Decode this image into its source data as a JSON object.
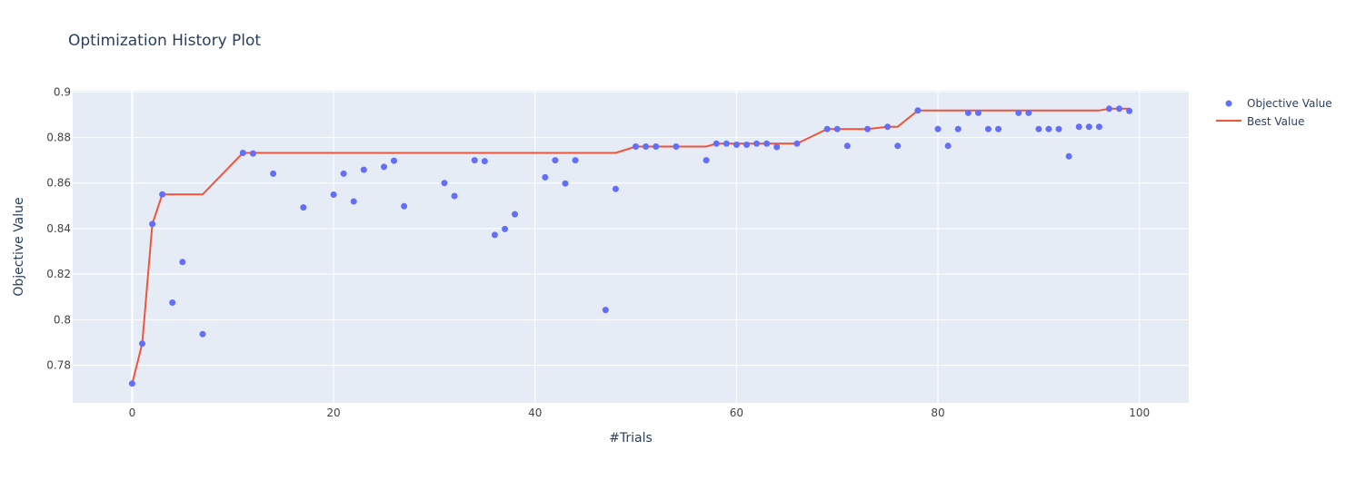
{
  "chart_data": {
    "type": "scatter",
    "title": "Optimization History Plot",
    "xlabel": "#Trials",
    "ylabel": "Objective Value",
    "xlim": [
      -5.9,
      104.9
    ],
    "ylim": [
      0.7635,
      0.9005
    ],
    "x_ticks": [
      0,
      20,
      40,
      60,
      80,
      100
    ],
    "x_tick_labels": [
      "0",
      "20",
      "40",
      "60",
      "80",
      "100"
    ],
    "y_ticks": [
      0.78,
      0.8,
      0.82,
      0.84,
      0.86,
      0.88,
      0.9
    ],
    "y_tick_labels": [
      "0.78",
      "0.8",
      "0.82",
      "0.84",
      "0.86",
      "0.88",
      "0.9"
    ],
    "grid": true,
    "legend_position": "top-right",
    "series": [
      {
        "name": "Objective Value",
        "mode": "markers",
        "color": "#636efa",
        "x": [
          0,
          1,
          2,
          3,
          4,
          5,
          7,
          11,
          12,
          14,
          17,
          20,
          21,
          22,
          23,
          25,
          26,
          27,
          31,
          32,
          34,
          35,
          36,
          37,
          38,
          41,
          42,
          43,
          44,
          47,
          48,
          50,
          51,
          52,
          54,
          57,
          58,
          59,
          60,
          61,
          62,
          63,
          64,
          66,
          69,
          70,
          71,
          73,
          75,
          76,
          78,
          80,
          81,
          82,
          83,
          84,
          85,
          86,
          88,
          89,
          90,
          91,
          92,
          93,
          94,
          95,
          96,
          97,
          98,
          99
        ],
        "y": [
          0.772,
          0.7895,
          0.842,
          0.855,
          0.8075,
          0.8253,
          0.7937,
          0.8732,
          0.873,
          0.8641,
          0.8493,
          0.8549,
          0.8641,
          0.8519,
          0.8658,
          0.8671,
          0.8698,
          0.8498,
          0.86,
          0.8543,
          0.87,
          0.8696,
          0.8372,
          0.8398,
          0.8463,
          0.8625,
          0.87,
          0.8598,
          0.87,
          0.8043,
          0.8574,
          0.876,
          0.876,
          0.876,
          0.876,
          0.87,
          0.8773,
          0.8773,
          0.8768,
          0.8768,
          0.8773,
          0.8773,
          0.8758,
          0.8773,
          0.8837,
          0.8837,
          0.8763,
          0.8837,
          0.8847,
          0.8763,
          0.8918,
          0.8837,
          0.8763,
          0.8837,
          0.8908,
          0.8908,
          0.8837,
          0.8837,
          0.8908,
          0.8908,
          0.8837,
          0.8837,
          0.8837,
          0.8717,
          0.8847,
          0.8847,
          0.8847,
          0.8926,
          0.8926,
          0.8916
        ]
      },
      {
        "name": "Best Value",
        "mode": "lines",
        "color": "#ef553b",
        "x": [
          0,
          1,
          2,
          3,
          4,
          5,
          7,
          11,
          12,
          14,
          17,
          20,
          21,
          22,
          23,
          25,
          26,
          27,
          31,
          32,
          34,
          35,
          36,
          37,
          38,
          41,
          42,
          43,
          44,
          47,
          48,
          50,
          51,
          52,
          54,
          57,
          58,
          59,
          60,
          61,
          62,
          63,
          64,
          66,
          69,
          70,
          71,
          73,
          75,
          76,
          78,
          80,
          81,
          82,
          83,
          84,
          85,
          86,
          88,
          89,
          90,
          91,
          92,
          93,
          94,
          95,
          96,
          97,
          98,
          99
        ],
        "y": [
          0.772,
          0.7895,
          0.842,
          0.855,
          0.855,
          0.855,
          0.855,
          0.8732,
          0.8732,
          0.8732,
          0.8732,
          0.8732,
          0.8732,
          0.8732,
          0.8732,
          0.8732,
          0.8732,
          0.8732,
          0.8732,
          0.8732,
          0.8732,
          0.8732,
          0.8732,
          0.8732,
          0.8732,
          0.8732,
          0.8732,
          0.8732,
          0.8732,
          0.8732,
          0.8732,
          0.876,
          0.876,
          0.876,
          0.876,
          0.876,
          0.8773,
          0.8773,
          0.8773,
          0.8773,
          0.8773,
          0.8773,
          0.8773,
          0.8773,
          0.8837,
          0.8837,
          0.8837,
          0.8837,
          0.8847,
          0.8847,
          0.8918,
          0.8918,
          0.8918,
          0.8918,
          0.8918,
          0.8918,
          0.8918,
          0.8918,
          0.8918,
          0.8918,
          0.8918,
          0.8918,
          0.8918,
          0.8918,
          0.8918,
          0.8918,
          0.8918,
          0.8926,
          0.8926,
          0.8926
        ]
      }
    ]
  }
}
